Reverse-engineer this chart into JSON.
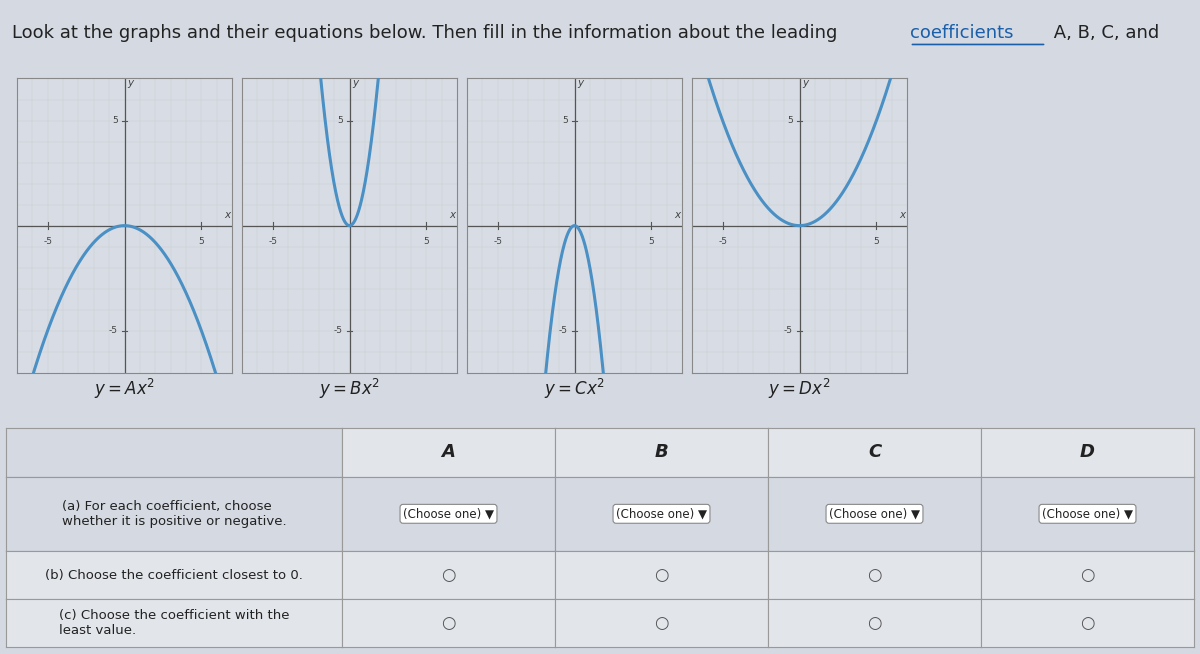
{
  "title_part1": "Look at the graphs and their equations below. Then fill in the information about the leading ",
  "title_coefficients": "coefficients",
  "title_part2": " A, B, C, and",
  "coefficients": {
    "A": -0.2,
    "B": 2.0,
    "C": -2.0,
    "D": 0.2
  },
  "xlim": [
    -7,
    7
  ],
  "ylim": [
    -7,
    7
  ],
  "curve_color": "#4a90c4",
  "grid_color": "#c8cdd4",
  "bg_color": "#d4d9e2",
  "plot_bg": "#d8dde5",
  "border_color": "#888888",
  "table_header_bg": "#e2e5ea",
  "table_row_bg": "#cdd2db",
  "table_border": "#999999",
  "col_headers": [
    "A",
    "B",
    "C",
    "D"
  ],
  "row_labels": [
    "(a) For each coefficient, choose\nwhether it is positive or negative.",
    "(b) Choose the coefficient closest to 0.",
    "(c) Choose the coefficient with the\nleast value."
  ],
  "dropdown_text": "(Choose one)",
  "font_color": "#222222",
  "title_fontsize": 13,
  "link_color": "#1a5faa"
}
